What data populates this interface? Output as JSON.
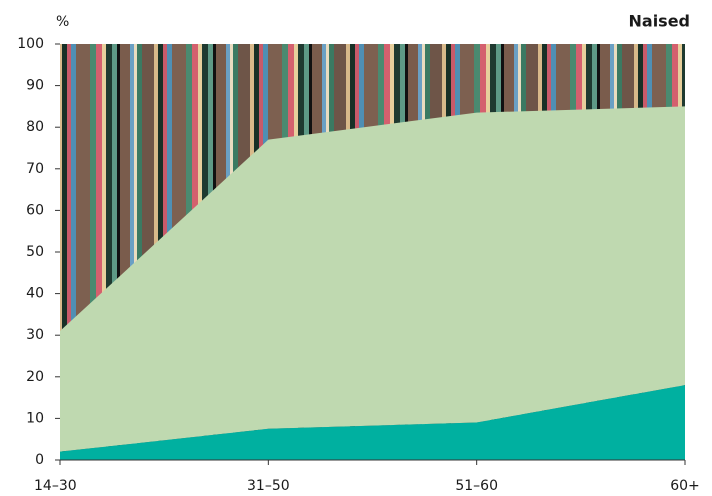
{
  "chart_data": {
    "type": "stacked_area",
    "title": "Naised",
    "y_label": "%",
    "categories": [
      "14–30",
      "31–50",
      "51–60",
      "60+"
    ],
    "series": [
      {
        "color": "#00b0a0",
        "values": [
          2,
          7.5,
          9,
          18
        ]
      },
      {
        "color": "#bfd9b0",
        "values": [
          29,
          69.5,
          74.5,
          67
        ]
      }
    ],
    "ylim": [
      0,
      100
    ],
    "yticks": [
      0,
      10,
      20,
      30,
      40,
      50,
      60,
      70,
      80,
      90,
      100
    ]
  }
}
